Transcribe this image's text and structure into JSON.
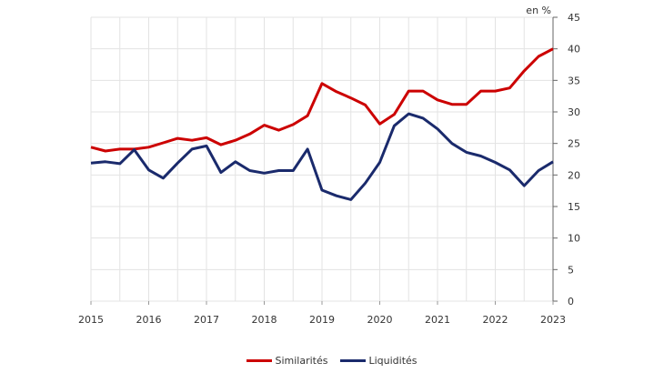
{
  "chart_data": {
    "type": "line",
    "title": "",
    "unit_label": "en %",
    "xlabel": "",
    "ylabel": "",
    "xlim": [
      2015,
      2023
    ],
    "ylim": [
      0,
      45
    ],
    "y_ticks": [
      0,
      5,
      10,
      15,
      20,
      25,
      30,
      35,
      40,
      45
    ],
    "x_ticks": [
      "2015",
      "2016",
      "2017",
      "2018",
      "2019",
      "2020",
      "2021",
      "2022",
      "2023"
    ],
    "y_axis_position": "right",
    "grid": true,
    "legend": "bottom",
    "x": [
      2015,
      2015.25,
      2015.5,
      2015.75,
      2016,
      2016.25,
      2016.5,
      2016.75,
      2017,
      2017.25,
      2017.5,
      2017.75,
      2018,
      2018.25,
      2018.5,
      2018.75,
      2019,
      2019.25,
      2019.5,
      2019.75,
      2020,
      2020.25,
      2020.5,
      2020.75,
      2021,
      2021.25,
      2021.5,
      2021.75,
      2022,
      2022.25,
      2022.5,
      2022.75,
      2023
    ],
    "series": [
      {
        "name": "Similarités",
        "color": "#cc0000",
        "values": [
          24.4,
          23.8,
          24.1,
          24.1,
          24.4,
          25.1,
          25.8,
          25.5,
          25.9,
          24.8,
          25.5,
          26.5,
          27.9,
          27.1,
          28.0,
          29.4,
          34.5,
          33.2,
          32.2,
          31.1,
          28.1,
          29.6,
          33.3,
          33.3,
          31.9,
          31.2,
          31.2,
          33.3,
          33.3,
          33.8,
          36.5,
          38.8,
          40.0
        ]
      },
      {
        "name": "Liquidités",
        "color": "#1a2a6c",
        "values": [
          21.9,
          22.1,
          21.8,
          24.0,
          20.8,
          19.5,
          21.9,
          24.1,
          24.6,
          20.4,
          22.1,
          20.7,
          20.3,
          20.7,
          20.7,
          24.1,
          17.6,
          16.7,
          16.1,
          18.7,
          22.0,
          27.8,
          29.7,
          29.0,
          27.3,
          25.0,
          23.6,
          23.0,
          22.0,
          20.8,
          18.3,
          20.7,
          22.1
        ]
      }
    ]
  }
}
